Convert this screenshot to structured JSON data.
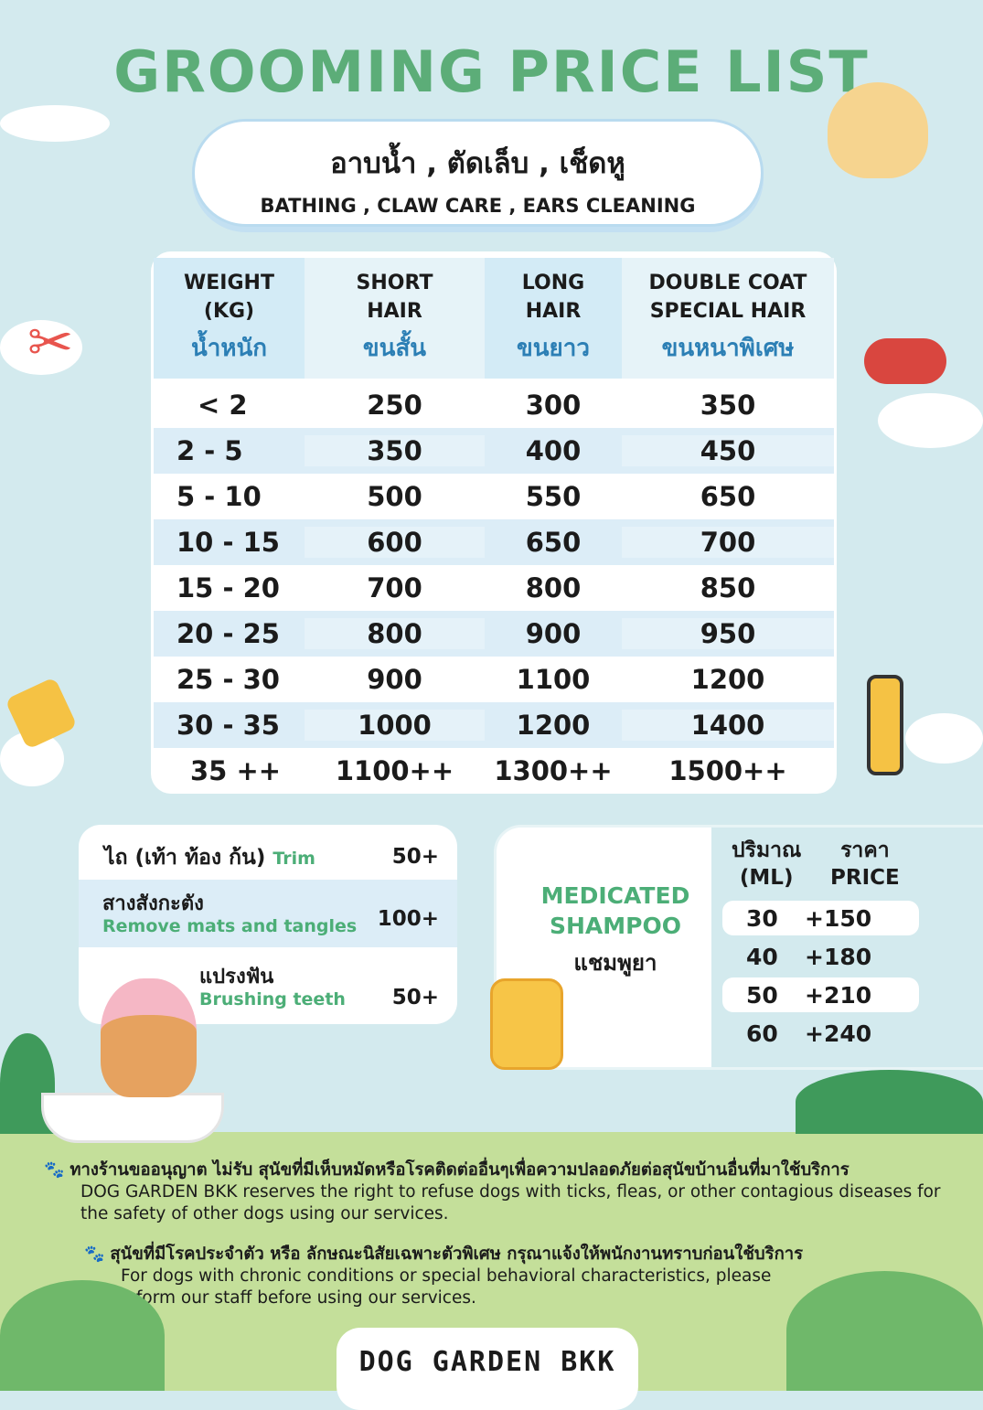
{
  "title": "GROOMING  PRICE LIST",
  "services": {
    "thai": "อาบน้ำ , ตัดเล็บ , เช็ดหู",
    "english": "BATHING , CLAW CARE , EARS CLEANING"
  },
  "table": {
    "headers": [
      {
        "en1": "WEIGHT",
        "en2": "(KG)",
        "th": "น้ำหนัก"
      },
      {
        "en1": "SHORT",
        "en2": "HAIR",
        "th": "ขนสั้น"
      },
      {
        "en1": "LONG",
        "en2": "HAIR",
        "th": "ขนยาว"
      },
      {
        "en1": "DOUBLE COAT",
        "en2": "SPECIAL HAIR",
        "th": "ขนหนาพิเศษ"
      }
    ],
    "rows": [
      [
        "< 2",
        "250",
        "300",
        "350"
      ],
      [
        "2   -  5",
        "350",
        "400",
        "450"
      ],
      [
        "5   -  10",
        "500",
        "550",
        "650"
      ],
      [
        "10  -  15",
        "600",
        "650",
        "700"
      ],
      [
        "15  -  20",
        "700",
        "800",
        "850"
      ],
      [
        "20 -  25",
        "800",
        "900",
        "950"
      ],
      [
        "25 -  30",
        "900",
        "1100",
        "1200"
      ],
      [
        "30 -  35",
        "1000",
        "1200",
        "1400"
      ],
      [
        "35 ++",
        "1100++",
        "1300++",
        "1500++"
      ]
    ]
  },
  "extras": [
    {
      "th": "ไถ (เท้า ท้อง ก้น)",
      "en": "Trim",
      "price": "50+"
    },
    {
      "th": "สางสังกะตัง",
      "en": "Remove mats and tangles",
      "price": "100+"
    },
    {
      "th": "แปรงฟัน",
      "en": "Brushing teeth",
      "price": "50+"
    }
  ],
  "shampoo": {
    "title1": "MEDICATED",
    "title2": "SHAMPOO",
    "thai": "แชมพูยา",
    "col1_th": "ปริมาณ",
    "col1_en": "(ML)",
    "col2_th": "ราคา",
    "col2_en": "PRICE",
    "rows": [
      [
        "30",
        "+150"
      ],
      [
        "40",
        "+180"
      ],
      [
        "50",
        "+210"
      ],
      [
        "60",
        "+240"
      ]
    ]
  },
  "notes": [
    {
      "th": "ทางร้านขออนุญาต ไม่รับ สุนัขที่มีเห็บหมัดหรือโรคติดต่ออื่นๆเพื่อความปลอดภัยต่อสุนัขบ้านอื่นที่มาใช้บริการ",
      "brand": "DOG GARDEN BKK",
      "en": " reserves the right to refuse dogs with ticks, fleas, or other contagious diseases for the safety of other dogs using our services."
    },
    {
      "th": "สุนัขที่มีโรคประจำตัว หรือ ลักษณะนิสัยเฉพาะตัวพิเศษ กรุณาแจ้งให้พนักงานทราบก่อนใช้บริการ",
      "en": "For dogs with chronic conditions or special behavioral characteristics, please inform our staff before using our services."
    }
  ],
  "logo": "DOG GARDEN BKK",
  "colors": {
    "background": "#d3eaee",
    "title_green": "#5cad78",
    "header_blue": "#2c7fb5",
    "ground": "#c4df9a"
  }
}
